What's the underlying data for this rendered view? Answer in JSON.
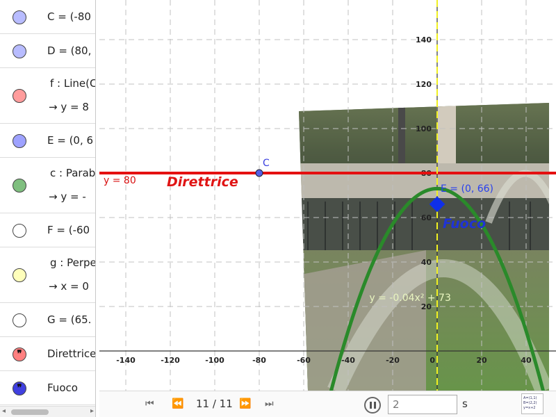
{
  "algebra": {
    "rows": [
      {
        "id": "C",
        "color": "#b8bcff",
        "line1": "C = (-80",
        "line2": ""
      },
      {
        "id": "D",
        "color": "#b8bcff",
        "line1": "D = (80,",
        "line2": ""
      },
      {
        "id": "f",
        "color": "#ff9c9c",
        "line1": "f : Line(C",
        "line2": "→  y = 8"
      },
      {
        "id": "E",
        "color": "#9ea2ff",
        "line1": "E = (0, 6",
        "line2": ""
      },
      {
        "id": "c",
        "color": "#7fbf7f",
        "line1": "c : Parab",
        "line2": "→  y = -"
      },
      {
        "id": "F",
        "color": "#ffffff",
        "line1": "F = (-60",
        "line2": ""
      },
      {
        "id": "g",
        "color": "#ffffbb",
        "line1": "g : Perpe",
        "line2": "→  x = 0"
      },
      {
        "id": "G",
        "color": "#ffffff",
        "line1": "G = (65.",
        "line2": ""
      },
      {
        "id": "Direttrice",
        "color": "#ff8080",
        "line1": "Direttrice",
        "line2": "",
        "quote": true
      },
      {
        "id": "Fuoco",
        "color": "#4040e0",
        "line1": "Fuoco",
        "line2": "",
        "quote": true
      }
    ]
  },
  "graph": {
    "x_ticks": [
      "-140",
      "-120",
      "-100",
      "-80",
      "-60",
      "-40",
      "-20",
      "0",
      "20",
      "40"
    ],
    "y_ticks": [
      "20",
      "40",
      "60",
      "80",
      "100",
      "120",
      "140"
    ],
    "directrix_label": "y = 80",
    "directrix_text": "Direttrice",
    "point_c_label": "C",
    "focus_label": "E = (0, 66)",
    "focus_text": "Fuoco",
    "parabola_label": "y = -0.04x² + 73",
    "colors": {
      "directrix": "#e41010",
      "parabola": "#2a8a2a",
      "axis": "#f0f020",
      "focus": "#0f2fe8",
      "grid": "#c0c0c0"
    }
  },
  "chart_data": {
    "type": "line",
    "title": "",
    "xlabel": "",
    "ylabel": "",
    "xlim": [
      -155,
      50
    ],
    "ylim": [
      -18,
      157
    ],
    "series": [
      {
        "name": "y = 80",
        "equation": "y = 80"
      },
      {
        "name": "y = -0.04x² + 73",
        "equation": "y = -0.04x^2 + 73"
      },
      {
        "name": "x = 0",
        "equation": "x = 0"
      }
    ],
    "points": [
      {
        "name": "C",
        "x": -80,
        "y": 80
      },
      {
        "name": "E",
        "x": 0,
        "y": 66
      }
    ],
    "grid": true
  },
  "toolbar": {
    "counter": "11 / 11",
    "speed_value": "2",
    "unit": "s",
    "style_icon_text": "A=(1,1) B=(2,2) y=x+2"
  }
}
